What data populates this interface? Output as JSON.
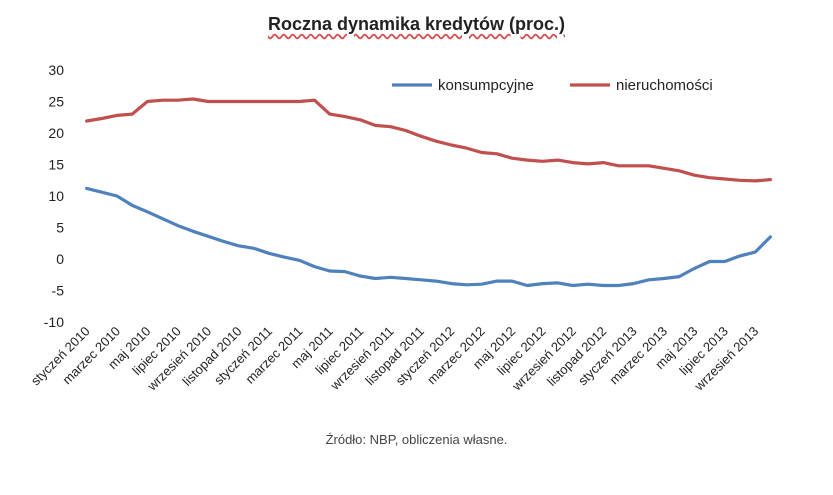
{
  "chart_data": {
    "type": "line",
    "title": "Roczna dynamika kredytów (proc.)",
    "source": "Źródło: NBP, obliczenia  własne.",
    "xlabel": "",
    "ylabel": "",
    "ylim": [
      -10,
      30
    ],
    "yticks": [
      30,
      25,
      20,
      15,
      10,
      5,
      0,
      -5,
      -10
    ],
    "grid": false,
    "legend_position": "top-right",
    "x_tick_labels": [
      "styczeń 2010",
      "marzec 2010",
      "maj 2010",
      "lipiec 2010",
      "wrzesień 2010",
      "listopad 2010",
      "styczeń 2011",
      "marzec 2011",
      "maj 2011",
      "lipiec 2011",
      "wrzesień 2011",
      "listopad 2011",
      "styczeń 2012",
      "marzec 2012",
      "maj 2012",
      "lipiec 2012",
      "wrzesień 2012",
      "listopad 2012",
      "styczeń 2013",
      "marzec 2013",
      "maj 2013",
      "lipiec 2013",
      "wrzesień 2013"
    ],
    "series": [
      {
        "name": "konsumpcyjne",
        "color": "#4f81bd",
        "values": [
          11.2,
          10.6,
          10.0,
          8.5,
          7.5,
          6.4,
          5.3,
          4.4,
          3.6,
          2.8,
          2.1,
          1.7,
          0.9,
          0.3,
          -0.2,
          -1.2,
          -1.9,
          -2.0,
          -2.7,
          -3.1,
          -2.9,
          -3.1,
          -3.3,
          -3.5,
          -3.9,
          -4.1,
          -4.0,
          -3.5,
          -3.5,
          -4.2,
          -3.9,
          -3.8,
          -4.2,
          -4.0,
          -4.2,
          -4.2,
          -3.9,
          -3.3,
          -3.1,
          -2.8,
          -1.5,
          -0.4,
          -0.4,
          0.5,
          1.1,
          3.5
        ]
      },
      {
        "name": "nieruchomości",
        "color": "#c0504d",
        "values": [
          21.9,
          22.3,
          22.8,
          23.0,
          25.0,
          25.2,
          25.2,
          25.4,
          25.0,
          25.0,
          25.0,
          25.0,
          25.0,
          25.0,
          25.0,
          25.2,
          23.0,
          22.6,
          22.1,
          21.2,
          21.0,
          20.4,
          19.5,
          18.7,
          18.1,
          17.6,
          16.9,
          16.7,
          16.0,
          15.7,
          15.5,
          15.7,
          15.3,
          15.1,
          15.3,
          14.8,
          14.8,
          14.8,
          14.4,
          14.0,
          13.3,
          12.9,
          12.7,
          12.5,
          12.4,
          12.6
        ]
      }
    ]
  }
}
